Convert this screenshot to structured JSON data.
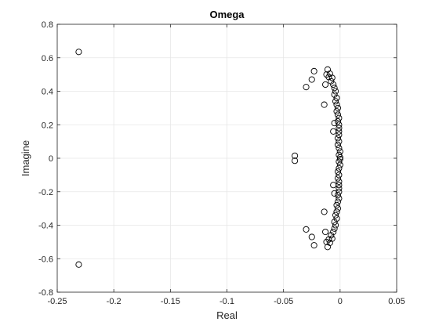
{
  "chart_data": {
    "type": "scatter",
    "title": "Omega",
    "xlabel": "Real",
    "ylabel": "Imagine",
    "xlim": [
      -0.25,
      0.05
    ],
    "ylim": [
      -0.8,
      0.8
    ],
    "xticks": [
      -0.25,
      -0.2,
      -0.15,
      -0.1,
      -0.05,
      0,
      0.05
    ],
    "xtick_labels": [
      "-0.25",
      "-0.2",
      "-0.15",
      "-0.1",
      "-0.05",
      "0",
      "0.05"
    ],
    "yticks": [
      -0.8,
      -0.6,
      -0.4,
      -0.2,
      0,
      0.2,
      0.4,
      0.6,
      0.8
    ],
    "ytick_labels": [
      "-0.8",
      "-0.6",
      "-0.4",
      "-0.2",
      "0",
      "0.2",
      "0.4",
      "0.6",
      "0.8"
    ],
    "grid": true,
    "marker": "open-circle",
    "marker_color": "#000000",
    "points": [
      [
        -0.231,
        0.635
      ],
      [
        -0.231,
        -0.635
      ],
      [
        -0.04,
        0.015
      ],
      [
        -0.04,
        -0.015
      ],
      [
        -0.03,
        0.425
      ],
      [
        -0.03,
        -0.425
      ],
      [
        -0.025,
        0.47
      ],
      [
        -0.025,
        -0.47
      ],
      [
        -0.023,
        0.52
      ],
      [
        -0.023,
        -0.52
      ],
      [
        -0.014,
        0.32
      ],
      [
        -0.014,
        -0.32
      ],
      [
        -0.013,
        0.44
      ],
      [
        -0.013,
        -0.44
      ],
      [
        -0.012,
        0.5
      ],
      [
        -0.012,
        -0.5
      ],
      [
        -0.011,
        0.53
      ],
      [
        -0.011,
        -0.53
      ],
      [
        -0.01,
        0.485
      ],
      [
        -0.01,
        -0.485
      ],
      [
        -0.009,
        0.505
      ],
      [
        -0.009,
        -0.505
      ],
      [
        -0.008,
        0.46
      ],
      [
        -0.008,
        -0.46
      ],
      [
        -0.007,
        0.48
      ],
      [
        -0.007,
        -0.48
      ],
      [
        -0.006,
        0.44
      ],
      [
        -0.006,
        -0.44
      ],
      [
        -0.005,
        0.42
      ],
      [
        -0.005,
        -0.42
      ],
      [
        -0.004,
        0.4
      ],
      [
        -0.004,
        -0.4
      ],
      [
        -0.005,
        0.38
      ],
      [
        -0.005,
        -0.38
      ],
      [
        -0.003,
        0.36
      ],
      [
        -0.003,
        -0.36
      ],
      [
        -0.004,
        0.34
      ],
      [
        -0.004,
        -0.34
      ],
      [
        -0.003,
        0.32
      ],
      [
        -0.003,
        -0.32
      ],
      [
        -0.002,
        0.3
      ],
      [
        -0.002,
        -0.3
      ],
      [
        -0.003,
        0.28
      ],
      [
        -0.003,
        -0.28
      ],
      [
        -0.002,
        0.26
      ],
      [
        -0.002,
        -0.26
      ],
      [
        -0.001,
        0.24
      ],
      [
        -0.001,
        -0.24
      ],
      [
        -0.002,
        0.22
      ],
      [
        -0.002,
        -0.22
      ],
      [
        -0.005,
        0.21
      ],
      [
        -0.005,
        -0.21
      ],
      [
        -0.001,
        0.2
      ],
      [
        -0.001,
        -0.2
      ],
      [
        -0.001,
        0.18
      ],
      [
        -0.001,
        -0.18
      ],
      [
        -0.006,
        0.16
      ],
      [
        -0.006,
        -0.16
      ],
      [
        -0.001,
        0.16
      ],
      [
        -0.001,
        -0.16
      ],
      [
        -0.001,
        0.14
      ],
      [
        -0.001,
        -0.14
      ],
      [
        -0.002,
        0.12
      ],
      [
        -0.002,
        -0.12
      ],
      [
        -0.001,
        0.1
      ],
      [
        -0.001,
        -0.1
      ],
      [
        -0.002,
        0.08
      ],
      [
        -0.002,
        -0.08
      ],
      [
        -0.001,
        0.06
      ],
      [
        -0.001,
        -0.06
      ],
      [
        0.0,
        0.04
      ],
      [
        0.0,
        -0.04
      ],
      [
        -0.001,
        0.02
      ],
      [
        -0.001,
        -0.02
      ],
      [
        0.0,
        0.005
      ],
      [
        0.0,
        -0.005
      ]
    ]
  }
}
